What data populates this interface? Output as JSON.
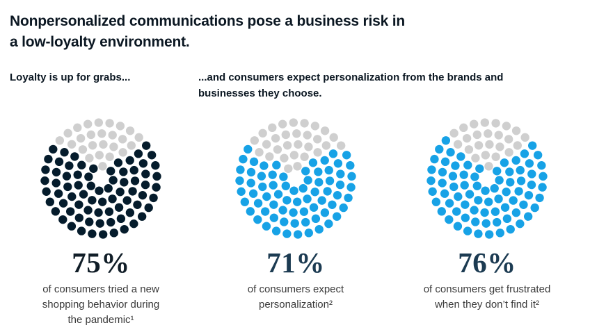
{
  "page": {
    "title": "Nonpersonalized communications pose a business risk in\na low-loyalty environment.",
    "subtitle_left": "Loyalty is up for grabs...",
    "subtitle_right": "...and consumers expect personalization from the brands and\nbusinesses they choose."
  },
  "colors": {
    "dark_navy": "#051C2C",
    "bright_blue": "#17A2E6",
    "remainder_gray": "#CFCFCF",
    "pct_near_black": "#101D27",
    "pct_navy": "#1C3B52",
    "caption_gray": "#3A3A3A"
  },
  "figures": [
    {
      "value": 75,
      "pct_label": "75%",
      "caption": "of consumers tried a new\nshopping behavior during\nthe pandemic¹",
      "dot_color": "#051C2C",
      "remainder_color": "#CFCFCF"
    },
    {
      "value": 71,
      "pct_label": "71%",
      "caption": "of consumers expect\npersonalization²",
      "dot_color": "#17A2E6",
      "remainder_color": "#CFCFCF"
    },
    {
      "value": 76,
      "pct_label": "76%",
      "caption": "of consumers get frustrated\nwhen they don’t find it²",
      "dot_color": "#17A2E6",
      "remainder_color": "#CFCFCF"
    }
  ],
  "chart_data": {
    "type": "pie",
    "variant": "dot-circle-pictograph",
    "title": "Nonpersonalized communications pose a business risk in a low-loyalty environment.",
    "subtitles": [
      "Loyalty is up for grabs...",
      "...and consumers expect personalization from the brands and businesses they choose."
    ],
    "units_per_circle": 100,
    "legend": "off",
    "series": [
      {
        "name": "of consumers tried a new shopping behavior during the pandemic¹",
        "value": 75,
        "remainder": 25,
        "value_color": "#051C2C",
        "remainder_color": "#CFCFCF"
      },
      {
        "name": "of consumers expect personalization²",
        "value": 71,
        "remainder": 29,
        "value_color": "#17A2E6",
        "remainder_color": "#CFCFCF"
      },
      {
        "name": "of consumers get frustrated when they don’t find it²",
        "value": 76,
        "remainder": 24,
        "value_color": "#17A2E6",
        "remainder_color": "#CFCFCF"
      }
    ]
  }
}
